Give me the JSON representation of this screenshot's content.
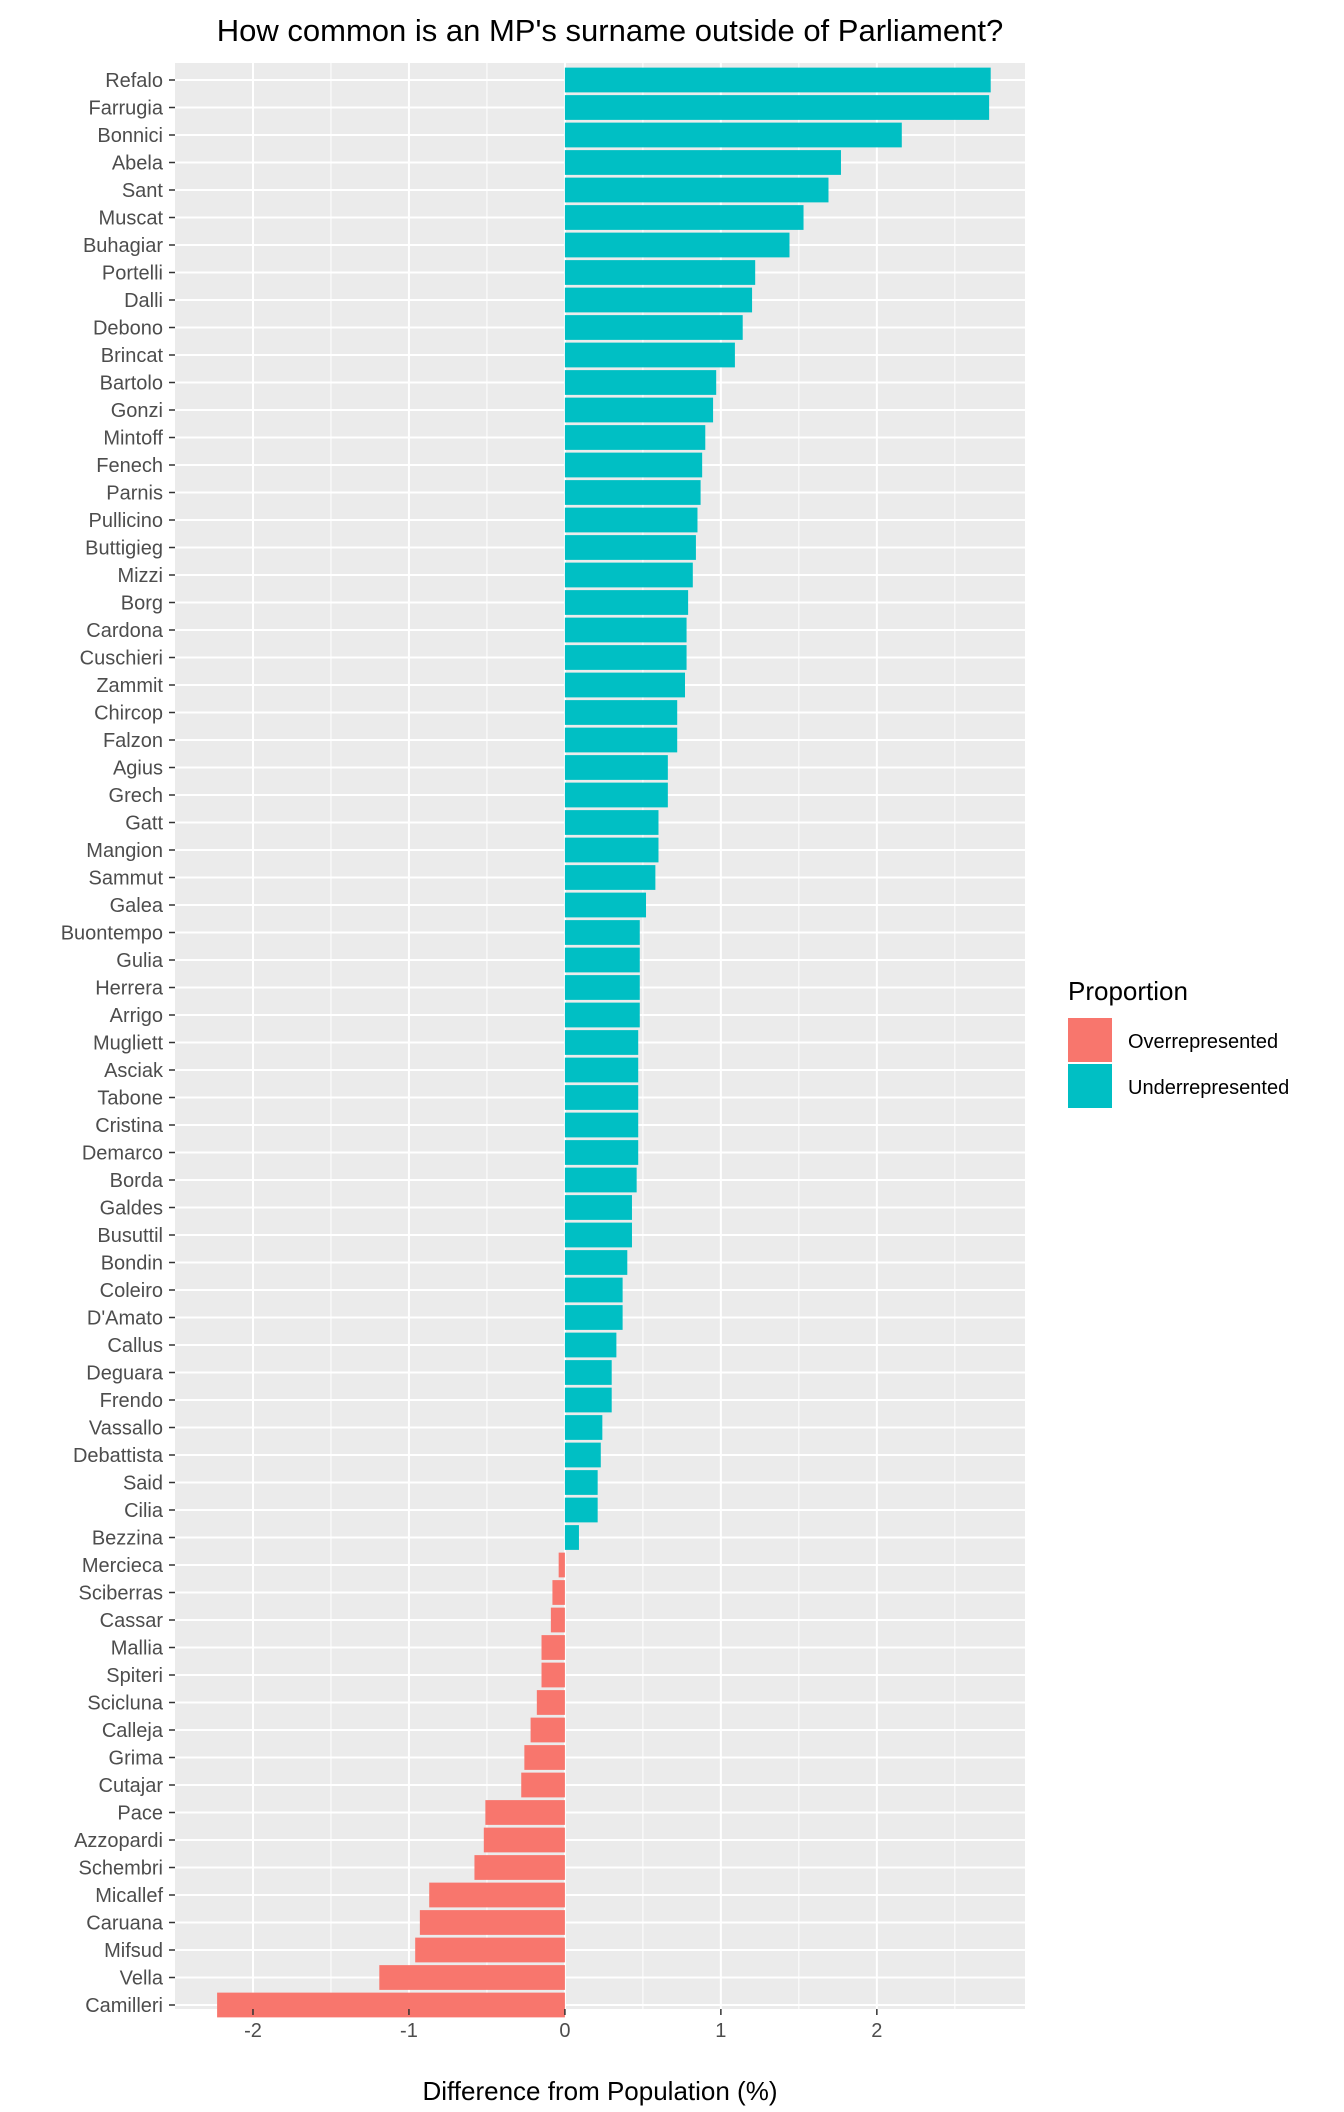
{
  "chart_data": {
    "type": "bar",
    "orientation": "horizontal",
    "title": "How common is an MP's surname outside of Parliament?",
    "xlabel": "Difference from Population (%)",
    "ylabel": "",
    "xlim": [
      -2.5,
      2.95
    ],
    "x_ticks": [
      -2,
      -1,
      0,
      1,
      2
    ],
    "grid": true,
    "legend": {
      "title": "Proportion",
      "position": "right",
      "entries": [
        {
          "name": "Overrepresented",
          "color": "#F8766D"
        },
        {
          "name": "Underrepresented",
          "color": "#00BFC4"
        }
      ]
    },
    "colors": {
      "Overrepresented": "#F8766D",
      "Underrepresented": "#00BFC4",
      "panel": "#EBEBEB",
      "grid": "#FFFFFF"
    },
    "categories": [
      "Refalo",
      "Farrugia",
      "Bonnici",
      "Abela",
      "Sant",
      "Muscat",
      "Buhagiar",
      "Portelli",
      "Dalli",
      "Debono",
      "Brincat",
      "Bartolo",
      "Gonzi",
      "Mintoff",
      "Fenech",
      "Parnis",
      "Pullicino",
      "Buttigieg",
      "Mizzi",
      "Borg",
      "Cardona",
      "Cuschieri",
      "Zammit",
      "Chircop",
      "Falzon",
      "Agius",
      "Grech",
      "Gatt",
      "Mangion",
      "Sammut",
      "Galea",
      "Buontempo",
      "Gulia",
      "Herrera",
      "Arrigo",
      "Mugliett",
      "Asciak",
      "Tabone",
      "Cristina",
      "Demarco",
      "Borda",
      "Galdes",
      "Busuttil",
      "Bondin",
      "Coleiro",
      "D'Amato",
      "Callus",
      "Deguara",
      "Frendo",
      "Vassallo",
      "Debattista",
      "Said",
      "Cilia",
      "Bezzina",
      "Mercieca",
      "Sciberras",
      "Cassar",
      "Mallia",
      "Spiteri",
      "Scicluna",
      "Calleja",
      "Grima",
      "Cutajar",
      "Pace",
      "Azzopardi",
      "Schembri",
      "Micallef",
      "Caruana",
      "Mifsud",
      "Vella",
      "Camilleri"
    ],
    "values": [
      2.73,
      2.72,
      2.16,
      1.77,
      1.69,
      1.53,
      1.44,
      1.22,
      1.2,
      1.14,
      1.09,
      0.97,
      0.95,
      0.9,
      0.88,
      0.87,
      0.85,
      0.84,
      0.82,
      0.79,
      0.78,
      0.78,
      0.77,
      0.72,
      0.72,
      0.66,
      0.66,
      0.6,
      0.6,
      0.58,
      0.52,
      0.48,
      0.48,
      0.48,
      0.48,
      0.47,
      0.47,
      0.47,
      0.47,
      0.47,
      0.46,
      0.43,
      0.43,
      0.4,
      0.37,
      0.37,
      0.33,
      0.3,
      0.3,
      0.24,
      0.23,
      0.21,
      0.21,
      0.09,
      -0.04,
      -0.08,
      -0.09,
      -0.15,
      -0.15,
      -0.18,
      -0.22,
      -0.26,
      -0.28,
      -0.51,
      -0.52,
      -0.58,
      -0.87,
      -0.93,
      -0.96,
      -1.19,
      -2.23
    ]
  }
}
